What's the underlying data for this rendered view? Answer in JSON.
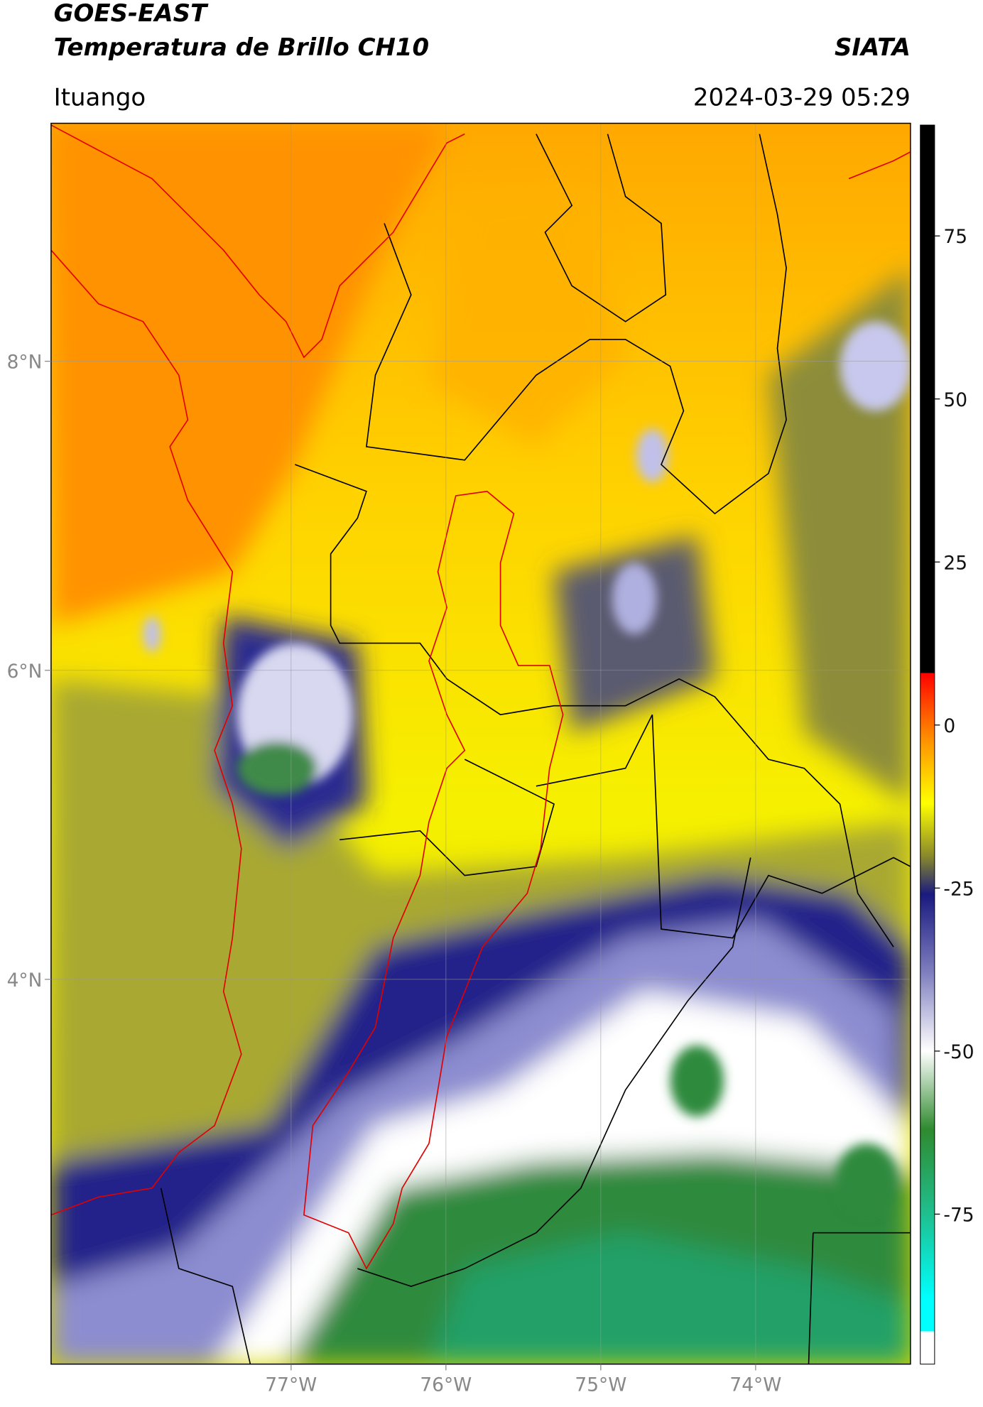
{
  "header": {
    "title": "GOES-EAST",
    "subtitle": "Temperatura de Brillo CH10",
    "source": "SIATA",
    "location": "Ituango",
    "datetime": "2024-03-29 05:29"
  },
  "map": {
    "xlim": [
      -78.55,
      -73.0
    ],
    "ylim": [
      1.51,
      9.54
    ],
    "xticks": [
      {
        "value": -77,
        "label": "77°W"
      },
      {
        "value": -76,
        "label": "76°W"
      },
      {
        "value": -75,
        "label": "75°W"
      },
      {
        "value": -74,
        "label": "74°W"
      }
    ],
    "yticks": [
      {
        "value": 8,
        "label": "8°N"
      },
      {
        "value": 6,
        "label": "6°N"
      },
      {
        "value": 4,
        "label": "4°N"
      }
    ],
    "grid": true
  },
  "colorbar": {
    "ylim": [
      -98,
      92
    ],
    "yticks": [
      75,
      50,
      25,
      0,
      -25,
      -50,
      -75
    ],
    "colormap": [
      {
        "value": 92,
        "color": "#000000"
      },
      {
        "value": 8,
        "color": "#000000"
      },
      {
        "value": 8,
        "color": "#ff0000"
      },
      {
        "value": 3,
        "color": "#ff4a00"
      },
      {
        "value": -3,
        "color": "#ff9a00"
      },
      {
        "value": -12,
        "color": "#ffff00"
      },
      {
        "value": -20,
        "color": "#8a8a2a"
      },
      {
        "value": -26,
        "color": "#1a1a80"
      },
      {
        "value": -38,
        "color": "#7f7fbf"
      },
      {
        "value": -50,
        "color": "#ffffff"
      },
      {
        "value": -62,
        "color": "#2f8a2f"
      },
      {
        "value": -75,
        "color": "#1fbf8f"
      },
      {
        "value": -88,
        "color": "#00ffff"
      },
      {
        "value": -93,
        "color": "#00ffff"
      },
      {
        "value": -93,
        "color": "#ffffff"
      },
      {
        "value": -98,
        "color": "#ffffff"
      }
    ]
  }
}
